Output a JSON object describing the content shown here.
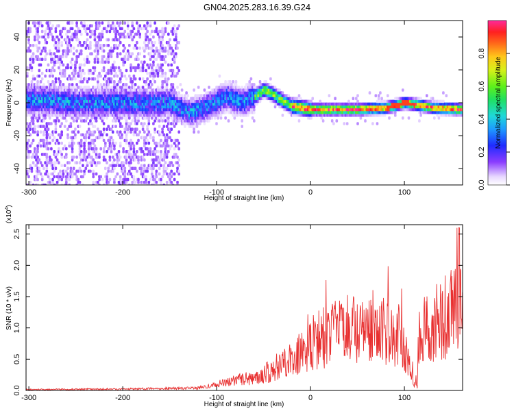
{
  "title": "GN04.2025.283.16.39.G24",
  "chart_data": [
    {
      "type": "heatmap",
      "name": "spectrogram",
      "xlabel": "Height of straight line (km)",
      "ylabel": "Frequency (Hz)",
      "xlim": [
        -303,
        162
      ],
      "ylim": [
        -50,
        50
      ],
      "xticks": [
        -300,
        -200,
        -100,
        0,
        100
      ],
      "yticks": [
        -40,
        -20,
        0,
        20,
        40
      ],
      "colorbar": {
        "label": "Normalized spectral amplitude",
        "range": [
          0,
          1
        ],
        "ticks": [
          0.0,
          0.2,
          0.4,
          0.6,
          0.8
        ]
      },
      "ridge": {
        "x": [
          -300,
          -250,
          -200,
          -150,
          -130,
          -110,
          -90,
          -75,
          -60,
          -50,
          -40,
          -30,
          -20,
          0,
          20,
          50,
          80,
          100,
          130,
          162
        ],
        "freq_hz": [
          2,
          0,
          0,
          0,
          -6,
          -2,
          4,
          0,
          4,
          8,
          5,
          1,
          -2,
          -4,
          -4,
          -4,
          -3,
          0,
          -3,
          -4
        ]
      }
    },
    {
      "type": "line",
      "name": "snr",
      "xlabel": "Height of straight line (km)",
      "ylabel": "SNR (10 * v/v)",
      "y_multiplier": "(x10",
      "y_multiplier_exp": "4",
      "y_multiplier_close": ")",
      "xlim": [
        -303,
        162
      ],
      "ylim": [
        0,
        2.65
      ],
      "xticks": [
        -300,
        -200,
        -100,
        0,
        100
      ],
      "yticks": [
        0.0,
        0.5,
        1.0,
        1.5,
        2.0,
        2.5
      ],
      "color": "#e83030",
      "envelope": {
        "x": [
          -303,
          -200,
          -120,
          -100,
          -70,
          -50,
          -30,
          -20,
          -10,
          0,
          20,
          40,
          60,
          80,
          95,
          100,
          105,
          110,
          115,
          120,
          130,
          140,
          150,
          160,
          162
        ],
        "y": [
          0.02,
          0.03,
          0.05,
          0.12,
          0.22,
          0.3,
          0.5,
          0.6,
          0.75,
          0.9,
          1.05,
          1.15,
          1.15,
          1.1,
          1.05,
          0.8,
          0.5,
          0.3,
          0.9,
          1.1,
          1.2,
          1.35,
          1.45,
          1.55,
          1.6
        ]
      }
    }
  ]
}
